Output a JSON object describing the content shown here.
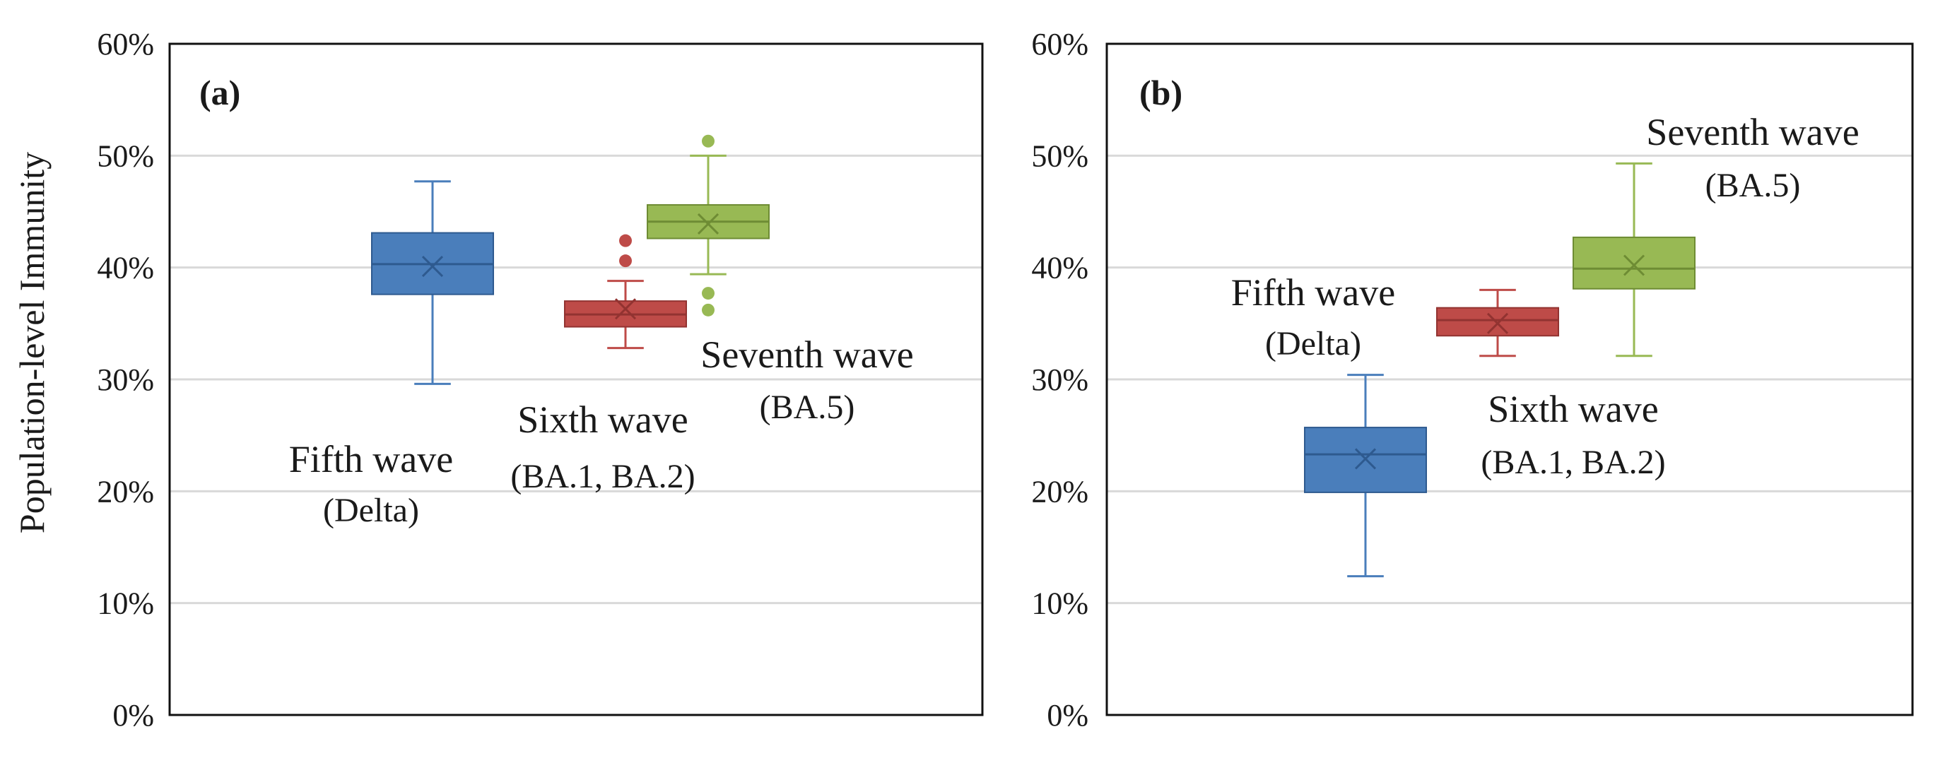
{
  "chart_data": [
    {
      "type": "box",
      "panel_label": "(a)",
      "ylabel": "Population-level Immunity",
      "ylim": [
        0,
        60
      ],
      "yticks": [
        "0%",
        "10%",
        "20%",
        "30%",
        "40%",
        "50%",
        "60%"
      ],
      "grid": true,
      "series": [
        {
          "name": "Fifth wave",
          "variant": "(Delta)",
          "color": "#4a7ebb",
          "stroke": "#2e5a8f",
          "whisker_low": 29.6,
          "q1": 37.6,
          "median": 40.3,
          "q3": 43.1,
          "whisker_high": 47.7,
          "mean": 40.1,
          "outliers": []
        },
        {
          "name": "Sixth wave",
          "variant": "(BA.1, BA.2)",
          "color": "#be4b48",
          "stroke": "#923331",
          "whisker_low": 32.8,
          "q1": 34.7,
          "median": 35.8,
          "q3": 37.0,
          "whisker_high": 38.8,
          "mean": 36.3,
          "outliers": [
            40.6,
            42.4
          ]
        },
        {
          "name": "Seventh wave",
          "variant": "(BA.5)",
          "color": "#98b954",
          "stroke": "#6e8c34",
          "whisker_low": 39.4,
          "q1": 42.6,
          "median": 44.1,
          "q3": 45.6,
          "whisker_high": 50.0,
          "mean": 43.9,
          "outliers": [
            51.3,
            37.7,
            36.2
          ]
        }
      ]
    },
    {
      "type": "box",
      "panel_label": "(b)",
      "ylabel": "",
      "ylim": [
        0,
        60
      ],
      "yticks": [
        "0%",
        "10%",
        "20%",
        "30%",
        "40%",
        "50%",
        "60%"
      ],
      "grid": true,
      "series": [
        {
          "name": "Fifth wave",
          "variant": "(Delta)",
          "color": "#4a7ebb",
          "stroke": "#2e5a8f",
          "whisker_low": 12.4,
          "q1": 19.9,
          "median": 23.3,
          "q3": 25.7,
          "whisker_high": 30.4,
          "mean": 22.9,
          "outliers": []
        },
        {
          "name": "Sixth wave",
          "variant": "(BA.1, BA.2)",
          "color": "#be4b48",
          "stroke": "#923331",
          "whisker_low": 32.1,
          "q1": 33.9,
          "median": 35.3,
          "q3": 36.4,
          "whisker_high": 38.0,
          "mean": 35.0,
          "outliers": []
        },
        {
          "name": "Seventh wave",
          "variant": "(BA.5)",
          "color": "#98b954",
          "stroke": "#6e8c34",
          "whisker_low": 32.1,
          "q1": 38.1,
          "median": 39.9,
          "q3": 42.7,
          "whisker_high": 49.3,
          "mean": 40.2,
          "outliers": []
        }
      ]
    }
  ]
}
